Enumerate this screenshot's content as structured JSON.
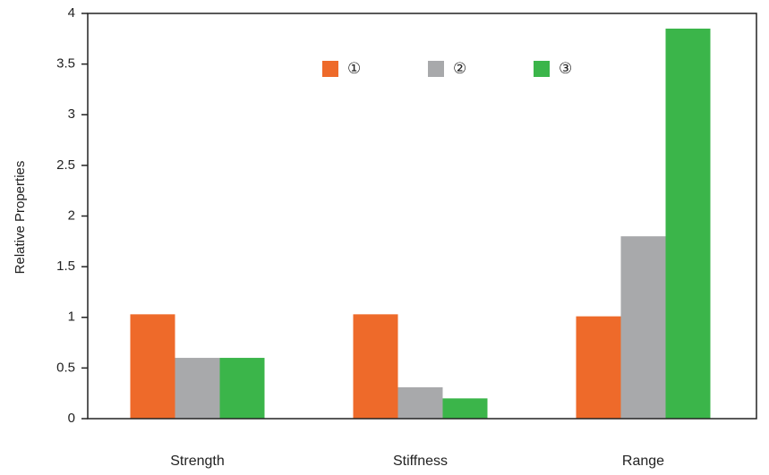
{
  "chart_data": {
    "type": "bar",
    "title": "",
    "xlabel": "",
    "ylabel": "Relative Properties",
    "categories": [
      "Strength",
      "Stiffness",
      "Range"
    ],
    "series": [
      {
        "name": "①",
        "color": "#ee6a2a",
        "values": [
          1.03,
          1.03,
          1.01
        ]
      },
      {
        "name": "②",
        "color": "#a8a9ab",
        "values": [
          0.6,
          0.31,
          1.8
        ]
      },
      {
        "name": "③",
        "color": "#3bb54a",
        "values": [
          0.6,
          0.2,
          3.85
        ]
      }
    ],
    "ylim": [
      0,
      4
    ],
    "yticks": [
      0,
      0.5,
      1,
      1.5,
      2,
      2.5,
      3,
      3.5,
      4
    ],
    "ytick_labels": [
      "0",
      "0.5",
      "1",
      "1.5",
      "2",
      "2.5",
      "3",
      "3.5",
      "4"
    ],
    "grid": false,
    "legend": "top-center"
  }
}
